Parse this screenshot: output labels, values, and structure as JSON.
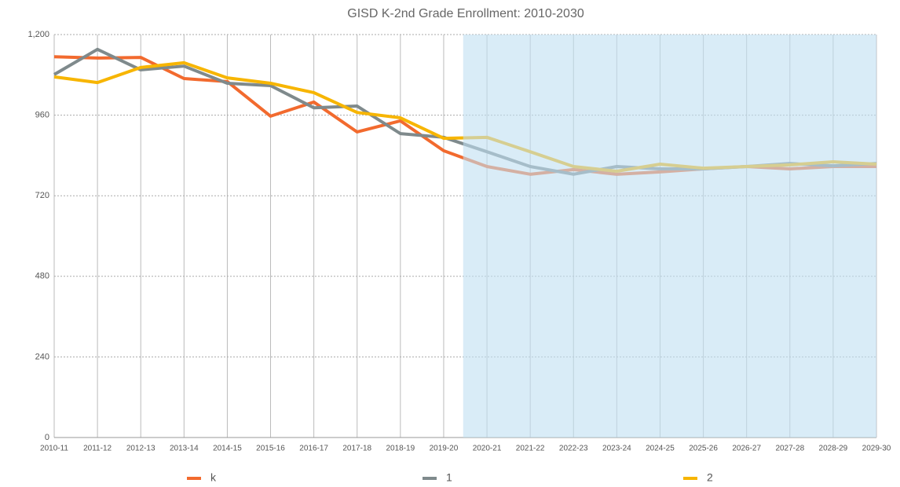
{
  "chart_data": {
    "type": "line",
    "title": "GISD K-2nd Grade Enrollment: 2010-2030",
    "categories": [
      "2010-11",
      "2011-12",
      "2012-13",
      "2013-14",
      "2014-15",
      "2015-16",
      "2016-17",
      "2017-18",
      "2018-19",
      "2019-20",
      "2020-21",
      "2021-22",
      "2022-23",
      "2023-24",
      "2024-25",
      "2025-26",
      "2026-27",
      "2027-28",
      "2028-29",
      "2029-30"
    ],
    "series": [
      {
        "name": "k",
        "color": "#f26a2e",
        "values": [
          1134,
          1130,
          1132,
          1069,
          1060,
          957,
          999,
          910,
          943,
          854,
          807,
          784,
          798,
          784,
          791,
          800,
          807,
          800,
          807,
          807
        ]
      },
      {
        "name": "1",
        "color": "#7f8a8c",
        "values": [
          1081,
          1156,
          1095,
          1106,
          1055,
          1048,
          982,
          987,
          905,
          894,
          851,
          807,
          784,
          807,
          800,
          800,
          807,
          816,
          809,
          816
        ]
      },
      {
        "name": "2",
        "color": "#f7b500",
        "values": [
          1074,
          1057,
          1102,
          1116,
          1071,
          1055,
          1027,
          968,
          952,
          891,
          894,
          851,
          807,
          793,
          814,
          802,
          807,
          812,
          821,
          814
        ]
      }
    ],
    "ylim": [
      0,
      1200
    ],
    "yticks": [
      0,
      240,
      480,
      720,
      960,
      {
        "value": 1200,
        "label": "1,200"
      }
    ],
    "grid": true,
    "legend": "bottom"
  }
}
